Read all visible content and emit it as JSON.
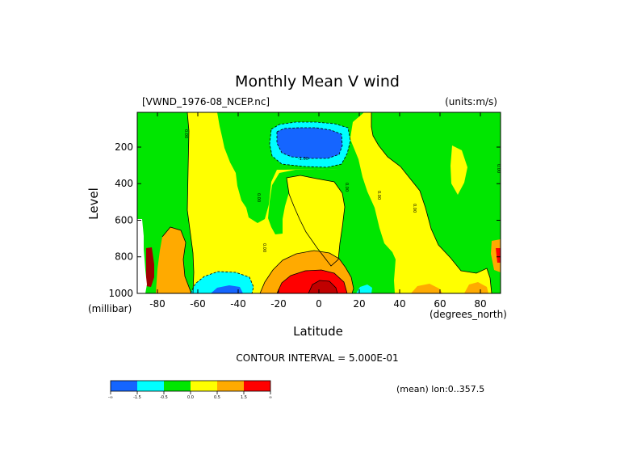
{
  "chart_data": {
    "type": "contour",
    "title": "Monthly Mean V wind",
    "file_label": "[VWND_1976-08_NCEP.nc]",
    "units_label": "(units:m/s)",
    "xlabel": "Latitude",
    "x_unit_label": "(degrees_north)",
    "ylabel": "Level",
    "y_unit_label": "(millibar)",
    "x_ticks": [
      "-80",
      "-60",
      "-40",
      "-20",
      "0",
      "20",
      "40",
      "60",
      "80"
    ],
    "y_ticks": [
      "200",
      "400",
      "600",
      "800",
      "1000"
    ],
    "xlim": [
      -90,
      90
    ],
    "ylim": [
      1000,
      10
    ],
    "y_direction": "inverted",
    "contour_interval_label": "CONTOUR INTERVAL = 5.000E-01",
    "mean_label": "(mean) lon:0..357.5",
    "contour_labels": [
      "0.00",
      "0.00",
      "0.00",
      "0.00",
      "0.00",
      "0.00",
      "0.00",
      "-1.00"
    ],
    "legend": {
      "colors": [
        "#1565ff",
        "#00ffff",
        "#00e600",
        "#ffff00",
        "#ffaa00",
        "#ff0000"
      ],
      "boundaries": [
        "-∞",
        "-1.5",
        "-0.5",
        "0.0",
        "0.5",
        "1.5",
        "∞"
      ]
    }
  }
}
